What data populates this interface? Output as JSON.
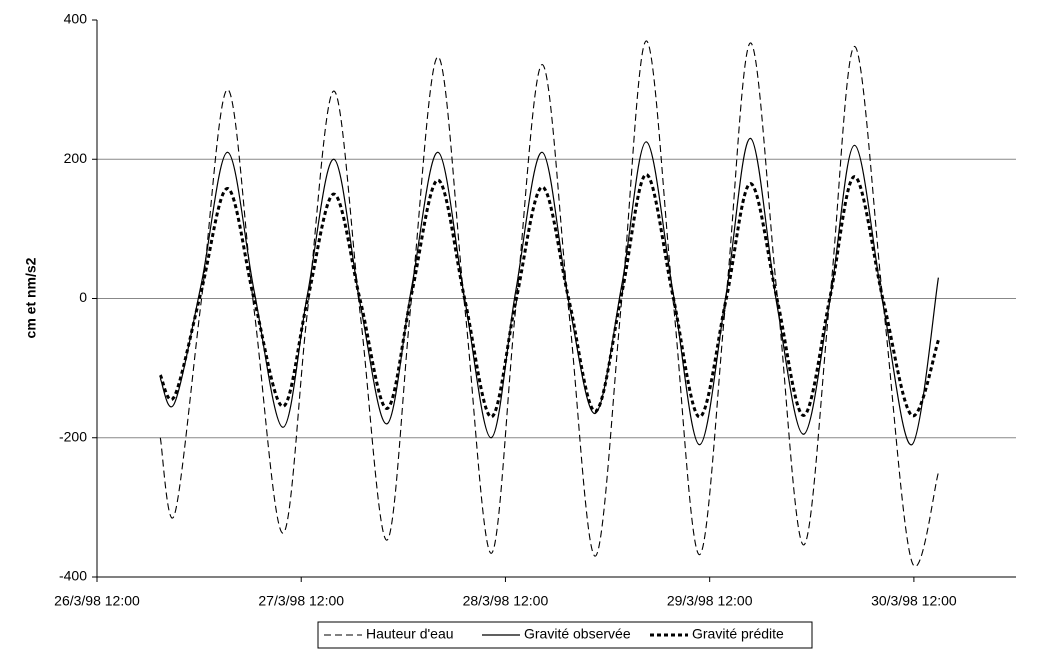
{
  "chart_data": {
    "type": "line",
    "y_label": "cm et nm/s2",
    "x": [
      0.31,
      0.38,
      0.51,
      0.64,
      0.77,
      0.91,
      1.03,
      1.16,
      1.29,
      1.42,
      1.54,
      1.67,
      1.8,
      1.93,
      2.05,
      2.18,
      2.31,
      2.44,
      2.57,
      2.69,
      2.82,
      2.95,
      3.08,
      3.2,
      3.33,
      3.46,
      3.59,
      3.71,
      3.85,
      3.99,
      4.12
    ],
    "series": [
      {
        "name": "Hauteur d'eau",
        "color": "#000000",
        "style": "dashed",
        "values": [
          -200,
          -310,
          -5,
          300,
          -18,
          -337,
          -20,
          298,
          -25,
          -347,
          0,
          347,
          -10,
          -366,
          -15,
          336,
          -17,
          -370,
          0,
          370,
          0,
          -368,
          0,
          367,
          6,
          -354,
          4,
          362,
          -8,
          -378,
          -250
        ]
      },
      {
        "name": "Gravité observée",
        "color": "#000000",
        "style": "solid",
        "values": [
          -115,
          -150,
          20,
          210,
          10,
          -185,
          5,
          200,
          -10,
          -180,
          15,
          210,
          0,
          -200,
          10,
          210,
          -5,
          -165,
          20,
          225,
          10,
          -210,
          5,
          230,
          -10,
          -195,
          0,
          220,
          -10,
          -210,
          30
        ]
      },
      {
        "name": "Gravité prédite",
        "color": "#000000",
        "style": "dotted-bold",
        "values": [
          -110,
          -140,
          10,
          158,
          -2,
          -155,
          -3,
          150,
          -4,
          -158,
          6,
          170,
          0,
          -170,
          -5,
          160,
          -1,
          -162,
          8,
          178,
          4,
          -170,
          -2,
          165,
          -1,
          -168,
          3,
          175,
          -3,
          -168,
          -60
        ]
      }
    ],
    "xlim": [
      0,
      4.5
    ],
    "xticks": [
      {
        "value": 0,
        "label": "26/3/98 12:00"
      },
      {
        "value": 1,
        "label": "27/3/98 12:00"
      },
      {
        "value": 2,
        "label": "28/3/98 12:00"
      },
      {
        "value": 3,
        "label": "29/3/98 12:00"
      },
      {
        "value": 4,
        "label": "30/3/98 12:00"
      }
    ],
    "ylim": [
      -400,
      400
    ],
    "yticks": [
      -400,
      -200,
      0,
      200,
      400
    ],
    "grid": true,
    "legend": "bottom"
  }
}
